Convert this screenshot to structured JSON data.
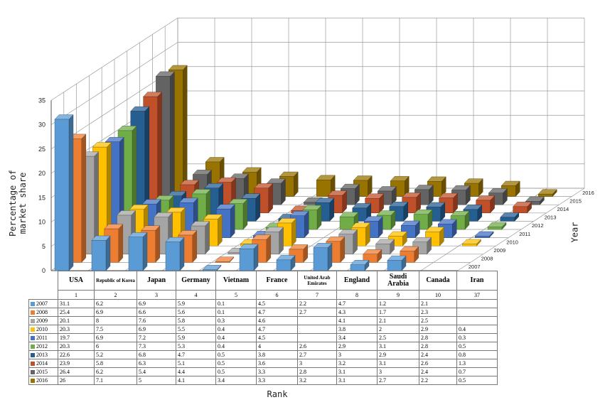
{
  "chart_data": {
    "type": "bar",
    "subtype": "3d-grouped-bar-with-data-table",
    "title": "",
    "xlabel": "Rank",
    "ylabel": "Percentage of market share",
    "zlabel": "Year",
    "ylim": [
      0,
      35
    ],
    "yticks": [
      "0",
      "5",
      "10",
      "15",
      "20",
      "25",
      "30",
      "35"
    ],
    "grid": true,
    "categories": [
      "USA",
      "Republic of Korea",
      "Japan",
      "Germany",
      "Vietnam",
      "France",
      "United Arab Emirates",
      "England",
      "Saudi Arabia",
      "Canada",
      "Iran"
    ],
    "ranks": [
      "1",
      "2",
      "3",
      "4",
      "5",
      "6",
      "7",
      "8",
      "9",
      "10",
      "37"
    ],
    "series": [
      {
        "name": "2007",
        "color": "#5b9bd5",
        "values": [
          "31.1",
          "6.2",
          "6.9",
          "5.9",
          "0.1",
          "4.5",
          "2.2",
          "4.7",
          "1.2",
          "2.1",
          ""
        ]
      },
      {
        "name": "2008",
        "color": "#ed7d31",
        "values": [
          "25.4",
          "6.9",
          "6.6",
          "5.6",
          "0.1",
          "4.7",
          "2.7",
          "4.3",
          "1.7",
          "2.3",
          ""
        ]
      },
      {
        "name": "2009",
        "color": "#a5a5a5",
        "values": [
          "20.1",
          "8",
          "7.6",
          "5.8",
          "0.3",
          "4.6",
          "",
          "4.1",
          "2.1",
          "2.5",
          ""
        ]
      },
      {
        "name": "2010",
        "color": "#ffc000",
        "values": [
          "20.3",
          "7.5",
          "6.9",
          "5.5",
          "0.4",
          "4.7",
          "",
          "3.8",
          "2",
          "2.9",
          "0.4"
        ]
      },
      {
        "name": "2011",
        "color": "#4472c4",
        "values": [
          "19.7",
          "6.9",
          "7.2",
          "5.9",
          "0.4",
          "4.5",
          "",
          "3.4",
          "2.5",
          "2.8",
          "0.3"
        ]
      },
      {
        "name": "2012",
        "color": "#70ad47",
        "values": [
          "20.3",
          "6",
          "7.3",
          "5.3",
          "0.4",
          "4",
          "2.6",
          "2.9",
          "3.1",
          "2.8",
          "0.5"
        ]
      },
      {
        "name": "2013",
        "color": "#255e91",
        "values": [
          "22.6",
          "5.2",
          "6.8",
          "4.7",
          "0.5",
          "3.8",
          "2.7",
          "3",
          "2.9",
          "2.4",
          "0.8"
        ]
      },
      {
        "name": "2014",
        "color": "#c0502a",
        "values": [
          "23.9",
          "5.8",
          "6.3",
          "5.1",
          "0.5",
          "3.6",
          "3",
          "3.2",
          "3.1",
          "2.6",
          "1.3"
        ]
      },
      {
        "name": "2015",
        "color": "#636363",
        "values": [
          "26.4",
          "6.2",
          "5.4",
          "4.4",
          "0.5",
          "3.3",
          "2.8",
          "3.1",
          "3",
          "2.4",
          "0.7"
        ]
      },
      {
        "name": "2016",
        "color": "#997300",
        "values": [
          "26",
          "7.1",
          "5",
          "4.1",
          "3.4",
          "3.3",
          "3.2",
          "3.1",
          "2.7",
          "2.2",
          "0.5"
        ]
      }
    ]
  }
}
